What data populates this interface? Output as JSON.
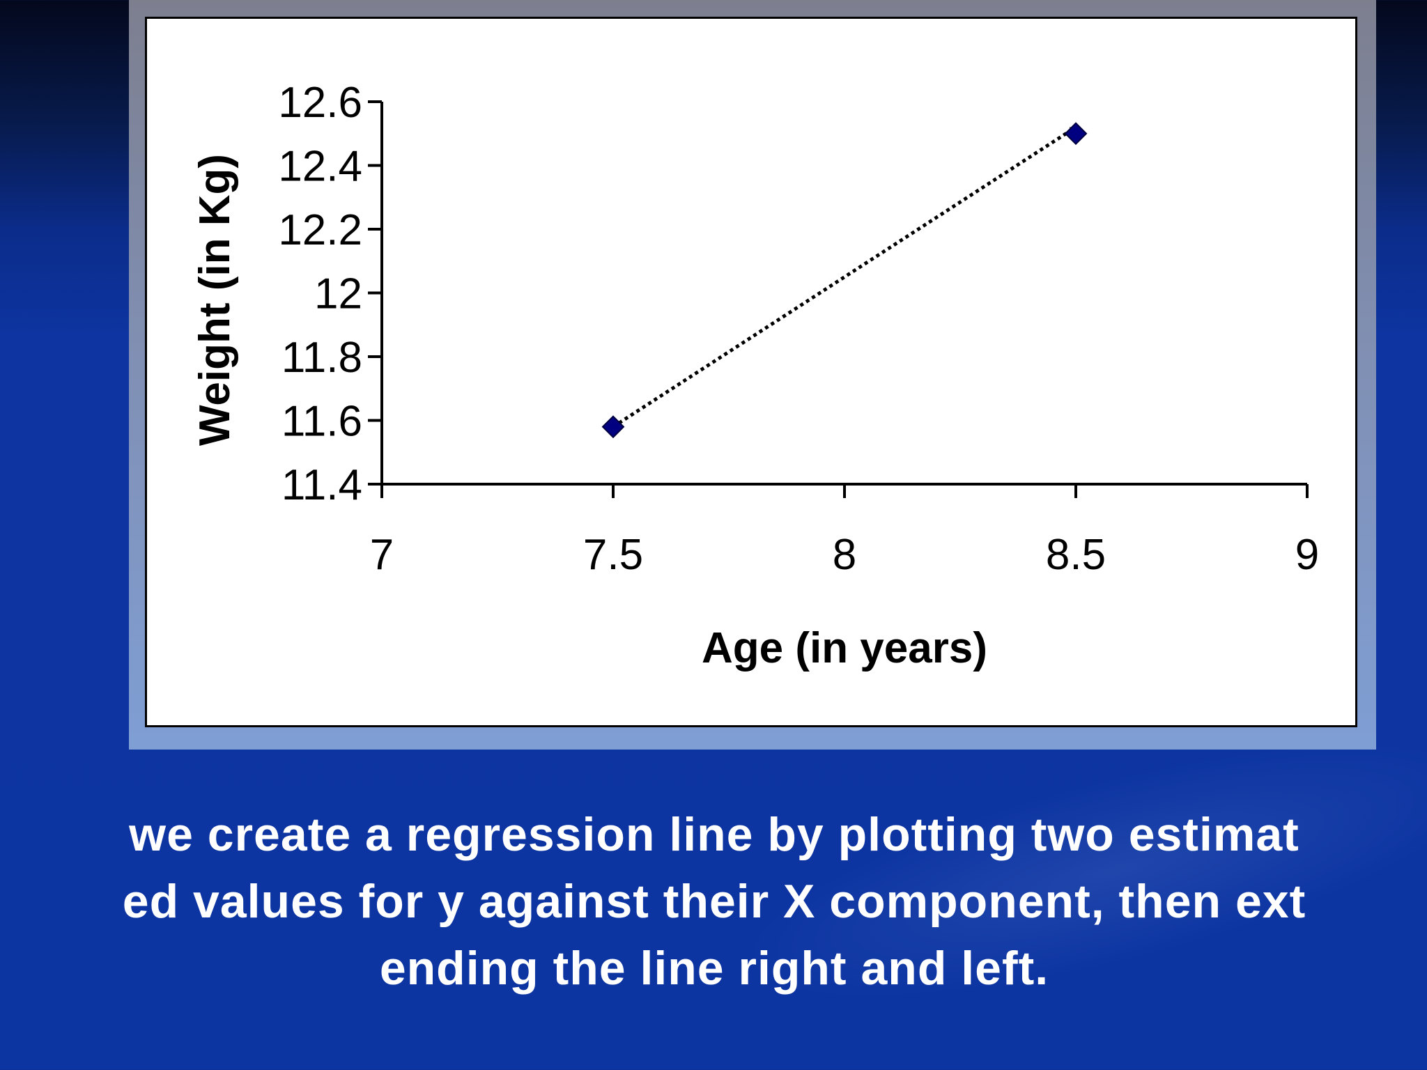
{
  "chart_data": {
    "type": "scatter",
    "xlabel": "Age (in years)",
    "ylabel": "Weight (in Kg)",
    "xlim": [
      7,
      9
    ],
    "ylim": [
      11.4,
      12.6
    ],
    "x_ticks": [
      "7",
      "7.5",
      "8",
      "8.5",
      "9"
    ],
    "y_ticks": [
      "11.4",
      "11.6",
      "11.8",
      "12",
      "12.2",
      "12.4",
      "12.6"
    ],
    "points": [
      {
        "x": 7.5,
        "y": 11.58
      },
      {
        "x": 8.5,
        "y": 12.5
      }
    ],
    "regression_line": {
      "style": "dotted",
      "color": "#000000",
      "from": {
        "x": 7.5,
        "y": 11.58
      },
      "to": {
        "x": 8.5,
        "y": 12.52
      }
    },
    "marker": {
      "shape": "diamond",
      "color": "#000080"
    },
    "grid": false,
    "legend": "none"
  },
  "caption": {
    "line1": "we create a regression line by plotting  two estimat",
    "line2": "ed values for y against their X component, then ext",
    "line3": "ending the line right and left."
  }
}
